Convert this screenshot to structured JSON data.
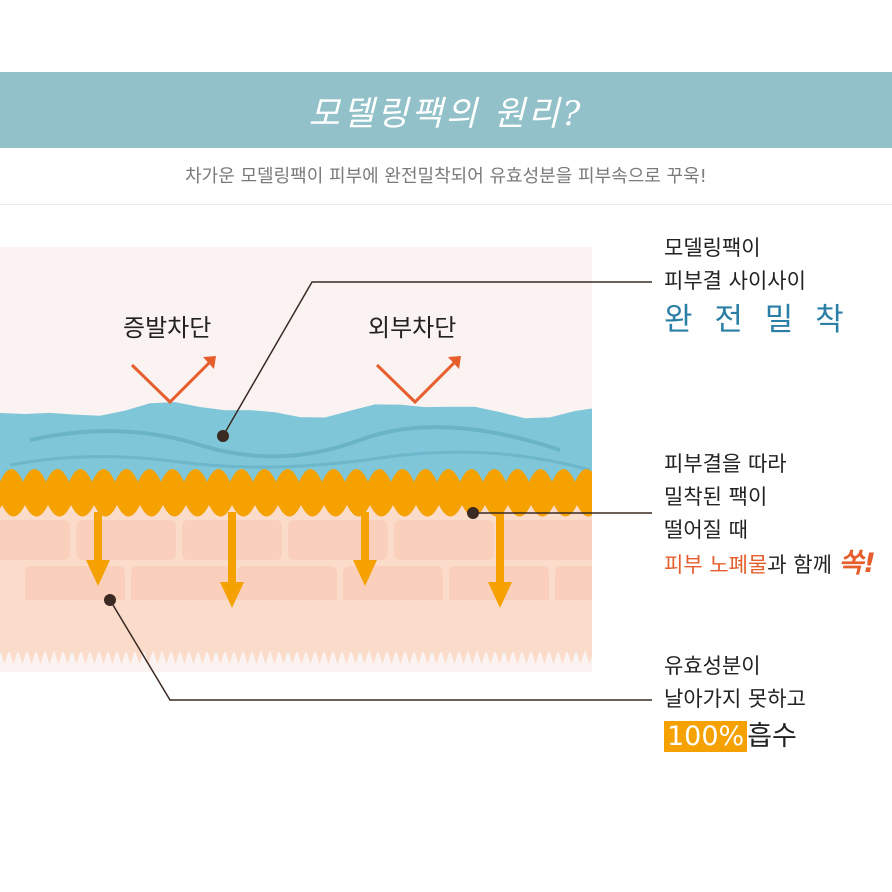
{
  "header": {
    "title": "모델링팩의 원리?",
    "subtitle": "차가운 모델링팩이 피부에 완전밀착되어 유효성분을 피부속으로 꾸욱!"
  },
  "diagram": {
    "label_evaporation": "증발차단",
    "label_external": "외부차단"
  },
  "callouts": {
    "top": {
      "line1": "모델링팩이",
      "line2": "피부결 사이사이",
      "highlight": "완 전 밀 착"
    },
    "middle": {
      "line1": "피부결을 따라",
      "line2": "밀착된 팩이",
      "line3": "떨어질 때",
      "highlight": "피부 노폐물",
      "tail": "과 함께 ",
      "exclaim": "쏙!"
    },
    "bottom": {
      "line1": "유효성분이",
      "line2": "날아가지 못하고",
      "percent": "100%",
      "tail": "흡수"
    }
  },
  "colors": {
    "banner": "#92c1c9",
    "pack_blue": "#7fc7d8",
    "orange": "#f5a100",
    "accent_red": "#e55e2c",
    "highlight_blue": "#2b7fa6"
  }
}
